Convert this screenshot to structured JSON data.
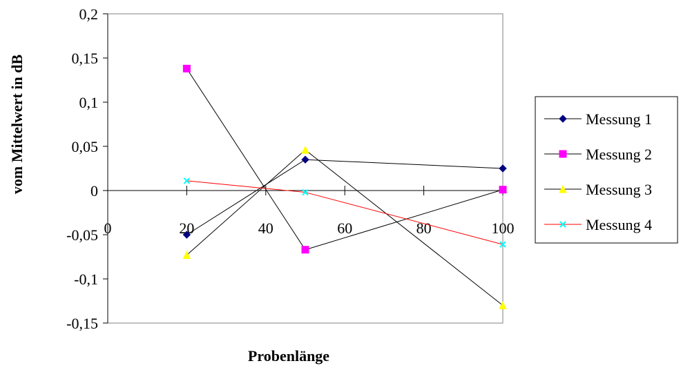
{
  "chart_data": {
    "type": "line",
    "title": "",
    "xlabel": "Probenlänge",
    "ylabel": "vom Mittelwert in dB",
    "xlim": [
      0,
      100
    ],
    "ylim": [
      -0.15,
      0.2
    ],
    "xticks": [
      0,
      20,
      40,
      60,
      80,
      100
    ],
    "xtick_labels": [
      "0",
      "20",
      "40",
      "60",
      "80",
      "100"
    ],
    "yticks": [
      -0.15,
      -0.1,
      -0.05,
      0,
      0.05,
      0.1,
      0.15,
      0.2
    ],
    "ytick_labels": [
      "-0,15",
      "-0,1",
      "-0,05",
      "0",
      "0,05",
      "0,1",
      "0,15",
      "0,2"
    ],
    "x": [
      20,
      50,
      100
    ],
    "grid": false,
    "legend_position": "right",
    "series": [
      {
        "name": "Messung 1",
        "values": [
          -0.05,
          0.035,
          0.025
        ],
        "color": "#000080",
        "line_color": "#000000",
        "marker": "diamond"
      },
      {
        "name": "Messung 2",
        "values": [
          0.138,
          -0.067,
          0.001
        ],
        "color": "#ff00ff",
        "line_color": "#000000",
        "marker": "square"
      },
      {
        "name": "Messung 3",
        "values": [
          -0.073,
          0.046,
          -0.13
        ],
        "color": "#ffff00",
        "line_color": "#000000",
        "marker": "triangle"
      },
      {
        "name": "Messung 4",
        "values": [
          0.011,
          -0.002,
          -0.061
        ],
        "color": "#00ffff",
        "line_color": "#ff0000",
        "marker": "x"
      }
    ]
  }
}
